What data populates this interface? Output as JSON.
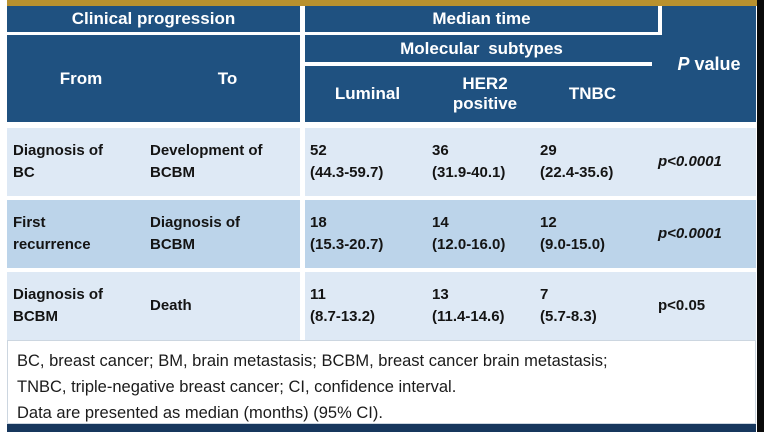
{
  "table": {
    "header": {
      "clinical_progression": "Clinical progression",
      "median_time": "Median time",
      "molecular_subtypes": "Molecular subtypes",
      "from_label": "From",
      "to_label": "To",
      "subtype_columns": [
        "Luminal",
        "HER2 positive",
        "TNBC"
      ],
      "p_value_symbol": "P",
      "p_value_rest": " value"
    },
    "rows": [
      {
        "from": "Diagnosis of BC",
        "to": "Development of BCBM",
        "luminal": "52",
        "luminal_ci": "(44.3-59.7)",
        "her2": "36",
        "her2_ci": "(31.9-40.1)",
        "tnbc": "29",
        "tnbc_ci": "(22.4-35.6)",
        "p_symbol": "p",
        "p_rest": "<0.0001"
      },
      {
        "from": "First recurrence",
        "to": "Diagnosis of BCBM",
        "luminal": "18",
        "luminal_ci": "(15.3-20.7)",
        "her2": "14",
        "her2_ci": "(12.0-16.0)",
        "tnbc": "12",
        "tnbc_ci": "(9.0-15.0)",
        "p_symbol": "p",
        "p_rest": "<0.0001"
      },
      {
        "from": "Diagnosis of BCBM",
        "to": "Death",
        "luminal": "11",
        "luminal_ci": "(8.7-13.2)",
        "her2": "13",
        "her2_ci": "(11.4-14.6)",
        "tnbc": "7",
        "tnbc_ci": "(5.7-8.3)",
        "p_symbol": "p",
        "p_rest": "<0.05"
      }
    ]
  },
  "footnotes": [
    "BC, breast cancer; BM, brain metastasis; BCBM, breast cancer brain metastasis;",
    "TNBC, triple-negative breast cancer;  CI, confidence interval.",
    "Data are presented as median (months) (95% CI)."
  ],
  "colors": {
    "header_navy": "#1F5180",
    "row_light": "#DEE9F5",
    "row_medium": "#BCD4EA",
    "gold_bar": "#B8912F",
    "bottom_bar_navy": "#17375D"
  }
}
